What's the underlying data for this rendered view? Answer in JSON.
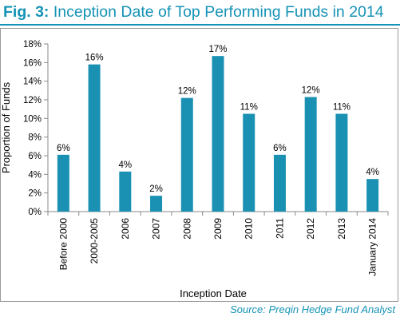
{
  "figure": {
    "title_prefix": "Fig. 3:",
    "title_text": "Inception Date of Top Performing Funds in 2014",
    "source": "Source: Preqin Hedge Fund Analyst"
  },
  "colors": {
    "accent": "#1593b6",
    "bar": "#1a91b3",
    "axis": "#8a8a8a",
    "frame": "#9a9a9a"
  },
  "chart_data": {
    "type": "bar",
    "title": "Inception Date of Top Performing Funds in 2014",
    "xlabel": "Inception Date",
    "ylabel": "Proportion of Funds",
    "ylim": [
      0,
      18
    ],
    "y_ticks": [
      "0%",
      "2%",
      "4%",
      "6%",
      "8%",
      "10%",
      "12%",
      "14%",
      "16%",
      "18%"
    ],
    "categories": [
      "Before 2000",
      "2000-2005",
      "2006",
      "2007",
      "2008",
      "2009",
      "2010",
      "2011",
      "2012",
      "2013",
      "January 2014"
    ],
    "values": [
      6.1,
      15.8,
      4.3,
      1.7,
      12.2,
      16.7,
      10.5,
      6.1,
      12.3,
      10.5,
      3.5
    ],
    "data_labels": [
      "6%",
      "16%",
      "4%",
      "2%",
      "12%",
      "17%",
      "11%",
      "6%",
      "12%",
      "11%",
      "4%"
    ],
    "grid": false,
    "legend": "none"
  }
}
